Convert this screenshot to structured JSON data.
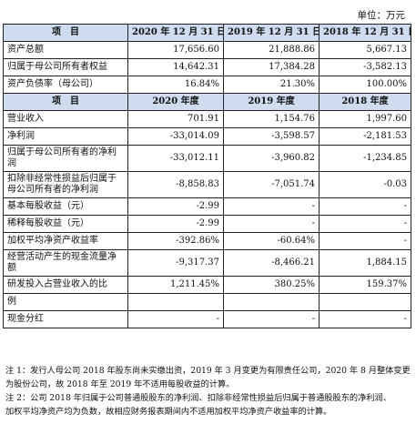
{
  "unit": "单位：万元",
  "header1": [
    "项　目",
    "2020 年 12 月 31 日",
    "2019 年 12 月 31 日",
    "2018 年 12 月 31 日"
  ],
  "balance_rows": [
    {
      "label": "资产总额",
      "v": [
        "17,656.60",
        "21,888.86",
        "5,667.13"
      ]
    },
    {
      "label": "归属于母公司所有者权益",
      "v": [
        "14,642.31",
        "17,384.28",
        "-3,582.13"
      ]
    },
    {
      "label": "资产负债率（母公司）",
      "v": [
        "16.84%",
        "21.30%",
        "100.00%"
      ]
    }
  ],
  "header2": [
    "项　目",
    "2020 年度",
    "2019 年度",
    "2018 年度"
  ],
  "income_rows": [
    {
      "label": "营业收入",
      "v": [
        "701.91",
        "1,154.76",
        "1,997.60"
      ]
    },
    {
      "label": "净利润",
      "v": [
        "-33,014.09",
        "-3,598.57",
        "-2,181.53"
      ]
    },
    {
      "label": "归属于母公司所有者的净利润",
      "v": [
        "-33,012.11",
        "-3,960.82",
        "-1,234.85"
      ]
    },
    {
      "label": "扣除非经常性损益后归属于母公司所有者的净利润",
      "v": [
        "-8,858.83",
        "-7,051.74",
        "-0.03"
      ]
    },
    {
      "label": "基本每股收益（元）",
      "v": [
        "-2.99",
        "-",
        "-"
      ]
    },
    {
      "label": "稀释每股收益（元）",
      "v": [
        "-2.99",
        "-",
        "-"
      ]
    },
    {
      "label": "加权平均净资产收益率",
      "v": [
        "-392.86%",
        "-60.64%",
        "-"
      ]
    },
    {
      "label": "经营活动产生的现金流量净额",
      "v": [
        "-9,317.37",
        "-8,466.21",
        "1,884.15"
      ]
    },
    {
      "label": "研发投入占营业收入的比",
      "v": [
        "1,211.45%",
        "380.25%",
        "159.37%"
      ]
    },
    {
      "label": "例",
      "v": [
        "",
        "",
        ""
      ]
    },
    {
      "label": "现金分红",
      "v": [
        "-",
        "-",
        "-"
      ]
    }
  ],
  "notes": [
    "注 1：发行人母公司 2018 年股东尚未实缴出资，2019 年 3 月变更为有限责任公司，2020 年 8 月整体变更",
    "为股份公司，故 2018 年至 2019 年不适用每股收益的计算。",
    "注 2：公司 2018 年归属于公司普通股股东的净利润、扣除非经常性损益后归属于普通股股东的净利润、",
    "加权平均净资产均为负数，故相应财务报表期间内不适用加权平均净资产收益率的计算。"
  ]
}
